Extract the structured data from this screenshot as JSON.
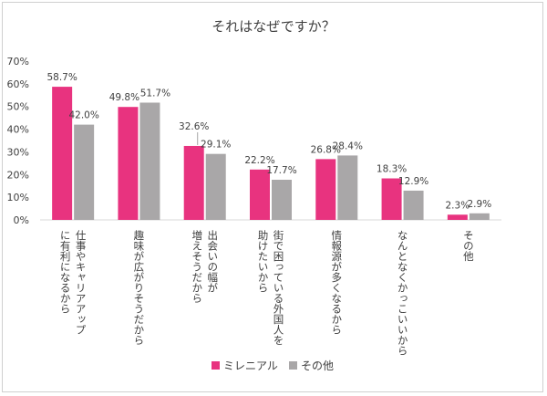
{
  "chart_data": {
    "type": "bar",
    "title": "それはなぜですか？",
    "xlabel": "",
    "ylabel": "",
    "ylim": [
      0,
      70
    ],
    "yticks": [
      "0%",
      "10%",
      "20%",
      "30%",
      "40%",
      "50%",
      "60%",
      "70%"
    ],
    "grid": false,
    "legend_position": "bottom",
    "categories": [
      [
        "仕事やキャリアアップ",
        "に有利になるから"
      ],
      [
        "趣味が広がりそうだから"
      ],
      [
        "出会いの幅が",
        "増えそうだから"
      ],
      [
        "街で困っている外国人を",
        "助けたいから"
      ],
      [
        "情報源が多くなるから"
      ],
      [
        "なんとなくかっこいいから"
      ],
      [
        "その他"
      ]
    ],
    "series": [
      {
        "name": "ミレニアル",
        "color": "#e8337f",
        "values": [
          58.7,
          49.8,
          32.6,
          22.2,
          26.8,
          18.3,
          2.3
        ],
        "labels": [
          "58.7%",
          "49.8%",
          "32.6%",
          "22.2%",
          "26.8%",
          "18.3%",
          "2.3%"
        ]
      },
      {
        "name": "その他",
        "color": "#a9a7a8",
        "values": [
          42.0,
          51.7,
          29.1,
          17.7,
          28.4,
          12.9,
          2.9
        ],
        "labels": [
          "42.0%",
          "51.7%",
          "29.1%",
          "17.7%",
          "28.4%",
          "12.9%",
          "2.9%"
        ]
      }
    ]
  }
}
